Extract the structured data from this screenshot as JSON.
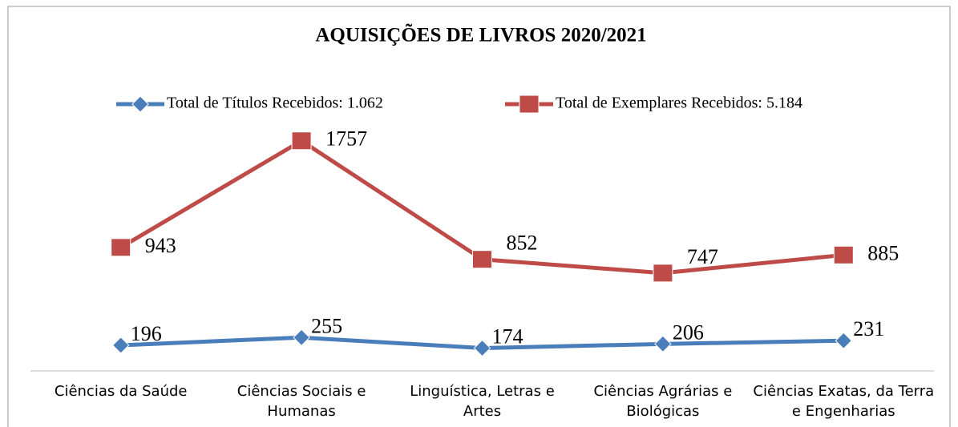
{
  "chart_data": {
    "type": "line",
    "title": "AQUISIÇÕES DE LIVROS 2020/2021",
    "categories": [
      "Ciências da Saúde",
      "Ciências Sociais e Humanas",
      "Linguística, Letras e Artes",
      "Ciências Agrárias e Biológicas",
      "Ciências Exatas, da Terra e Engenharias"
    ],
    "series": [
      {
        "name": "Total de Títulos Recebidos: 1.062",
        "color": "#4a7ebb",
        "marker": "diamond",
        "values": [
          196,
          255,
          174,
          206,
          231
        ]
      },
      {
        "name": "Total de Exemplares Recebidos: 5.184",
        "color": "#be4b48",
        "marker": "square",
        "values": [
          943,
          1757,
          852,
          747,
          885
        ]
      }
    ],
    "ylim": [
      0,
      2000
    ],
    "legend": "top"
  }
}
